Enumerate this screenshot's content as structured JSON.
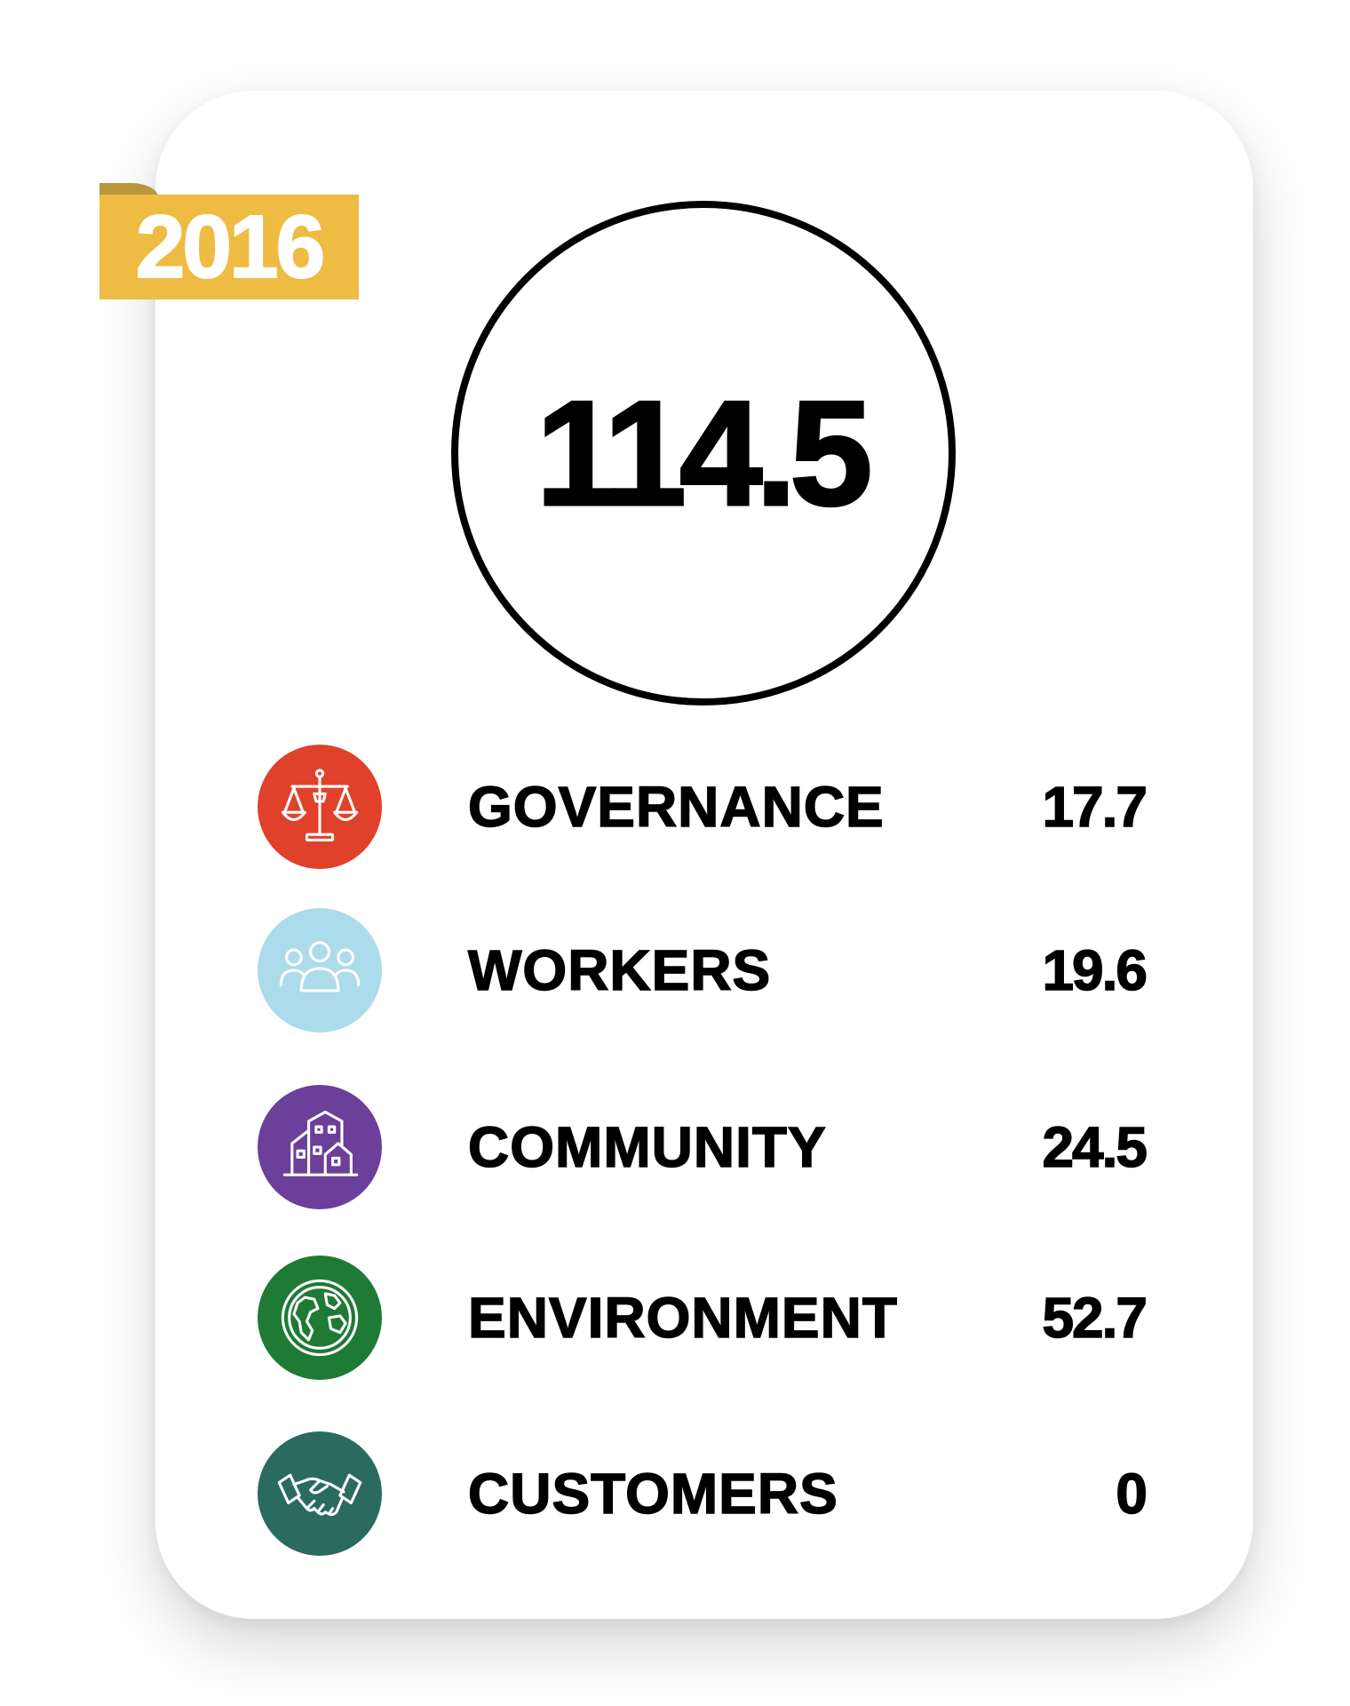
{
  "year_badge": {
    "text": "2016",
    "color": "#eebb43"
  },
  "total": {
    "value": "114.5"
  },
  "categories": [
    {
      "label": "GOVERNANCE",
      "value": "17.7",
      "icon": "scales-of-justice-icon",
      "color": "#e0412b"
    },
    {
      "label": "WORKERS",
      "value": "19.6",
      "icon": "people-group-icon",
      "color": "#acdbec"
    },
    {
      "label": "COMMUNITY",
      "value": "24.5",
      "icon": "buildings-icon",
      "color": "#6c3f9a"
    },
    {
      "label": "ENVIRONMENT",
      "value": "52.7",
      "icon": "globe-icon",
      "color": "#1e7a34"
    },
    {
      "label": "CUSTOMERS",
      "value": "0",
      "icon": "handshake-icon",
      "color": "#2a6b5d"
    }
  ]
}
